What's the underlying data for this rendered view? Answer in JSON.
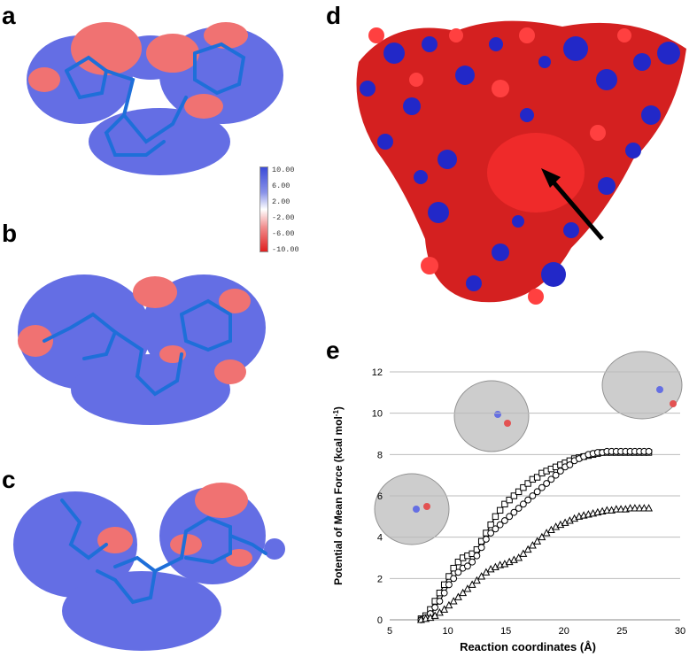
{
  "panels": {
    "a": "a",
    "b": "b",
    "c": "c",
    "d": "d",
    "e": "e"
  },
  "colors": {
    "positive": "#3b4bd8",
    "negative": "#e02020",
    "stick": "#1e6fd9"
  },
  "colorbar": {
    "labels": [
      "10.00",
      "6.00",
      "2.00",
      "-2.00",
      "-6.00",
      "-10.00"
    ]
  },
  "chart_data": {
    "type": "scatter",
    "xlabel": "Reaction coordinates (Å)",
    "ylabel": "Potential of Mean Force (kcal mol-1)",
    "ylabel_main": "Potential of Mean Force (kcal mol",
    "ylabel_sup": "-1",
    "ylabel_close": ")",
    "xlim": [
      5,
      30
    ],
    "ylim": [
      0,
      12
    ],
    "xticks": [
      5,
      10,
      15,
      20,
      25,
      30
    ],
    "yticks": [
      0,
      2,
      4,
      6,
      8,
      10,
      12
    ],
    "grid": "horizontal",
    "series": [
      {
        "marker": "square",
        "x": [
          7.7,
          8.1,
          8.5,
          8.9,
          9.3,
          9.7,
          10.1,
          10.5,
          10.9,
          11.3,
          11.7,
          12.1,
          12.5,
          12.9,
          13.3,
          13.7,
          14.1,
          14.5,
          14.9,
          15.3,
          15.7,
          16.1,
          16.5,
          16.9,
          17.3,
          17.7,
          18.1,
          18.5,
          18.9,
          19.3,
          19.7,
          20.1,
          20.5,
          20.9,
          21.3,
          21.7,
          22.1,
          22.5,
          22.9,
          23.3,
          23.7,
          24.1,
          24.5,
          24.9,
          25.3,
          25.7,
          26.1,
          26.5,
          26.9,
          27.3
        ],
        "y": [
          0.05,
          0.2,
          0.5,
          0.9,
          1.3,
          1.7,
          2.1,
          2.5,
          2.8,
          3.0,
          3.1,
          3.2,
          3.4,
          3.8,
          4.2,
          4.6,
          5.0,
          5.3,
          5.6,
          5.8,
          6.0,
          6.2,
          6.4,
          6.6,
          6.8,
          6.9,
          7.1,
          7.2,
          7.3,
          7.4,
          7.5,
          7.6,
          7.7,
          7.8,
          7.85,
          7.9,
          7.95,
          8.0,
          8.05,
          8.1,
          8.1,
          8.1,
          8.1,
          8.1,
          8.1,
          8.1,
          8.1,
          8.1,
          8.1,
          8.1
        ]
      },
      {
        "marker": "circle",
        "x": [
          7.7,
          8.1,
          8.5,
          8.9,
          9.3,
          9.7,
          10.1,
          10.5,
          10.9,
          11.3,
          11.7,
          12.1,
          12.5,
          12.9,
          13.3,
          13.7,
          14.1,
          14.5,
          14.9,
          15.3,
          15.7,
          16.1,
          16.5,
          16.9,
          17.3,
          17.7,
          18.1,
          18.5,
          18.9,
          19.3,
          19.7,
          20.1,
          20.5,
          20.9,
          21.3,
          21.7,
          22.1,
          22.5,
          22.9,
          23.3,
          23.7,
          24.1,
          24.5,
          24.9,
          25.3,
          25.7,
          26.1,
          26.5,
          26.9,
          27.3
        ],
        "y": [
          0.0,
          0.1,
          0.3,
          0.6,
          0.9,
          1.3,
          1.7,
          2.0,
          2.3,
          2.5,
          2.6,
          2.8,
          3.1,
          3.5,
          3.9,
          4.2,
          4.4,
          4.6,
          4.8,
          5.0,
          5.2,
          5.4,
          5.6,
          5.8,
          6.0,
          6.2,
          6.4,
          6.6,
          6.8,
          7.0,
          7.2,
          7.4,
          7.5,
          7.7,
          7.8,
          7.9,
          8.0,
          8.05,
          8.1,
          8.1,
          8.15,
          8.15,
          8.15,
          8.15,
          8.15,
          8.15,
          8.15,
          8.15,
          8.15,
          8.15
        ]
      },
      {
        "marker": "triangle",
        "x": [
          7.7,
          8.1,
          8.5,
          8.9,
          9.3,
          9.7,
          10.1,
          10.5,
          10.9,
          11.3,
          11.7,
          12.1,
          12.5,
          12.9,
          13.3,
          13.7,
          14.1,
          14.5,
          14.9,
          15.3,
          15.7,
          16.1,
          16.5,
          16.9,
          17.3,
          17.7,
          18.1,
          18.5,
          18.9,
          19.3,
          19.7,
          20.1,
          20.5,
          20.9,
          21.3,
          21.7,
          22.1,
          22.5,
          22.9,
          23.3,
          23.7,
          24.1,
          24.5,
          24.9,
          25.3,
          25.7,
          26.1,
          26.5,
          26.9,
          27.3
        ],
        "y": [
          0.0,
          0.05,
          0.1,
          0.2,
          0.35,
          0.5,
          0.7,
          0.9,
          1.1,
          1.3,
          1.5,
          1.7,
          1.9,
          2.1,
          2.3,
          2.45,
          2.55,
          2.65,
          2.7,
          2.8,
          2.9,
          3.0,
          3.2,
          3.4,
          3.6,
          3.8,
          4.0,
          4.2,
          4.35,
          4.5,
          4.6,
          4.7,
          4.8,
          4.9,
          5.0,
          5.05,
          5.1,
          5.15,
          5.2,
          5.25,
          5.3,
          5.3,
          5.35,
          5.35,
          5.35,
          5.4,
          5.4,
          5.4,
          5.4,
          5.4
        ]
      }
    ]
  }
}
